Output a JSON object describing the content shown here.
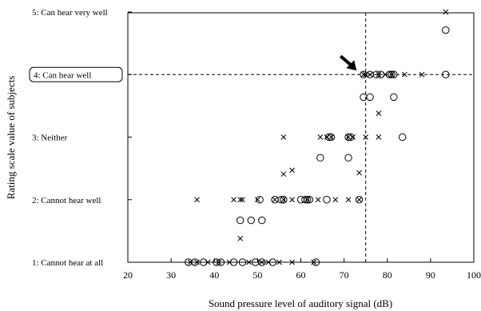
{
  "chart_data": {
    "type": "scatter",
    "title": "",
    "xlabel": "Sound pressure level of auditory signal (dB)",
    "ylabel": "Rating scale value of subjects",
    "xlim": [
      20,
      100
    ],
    "ylim": [
      1,
      5
    ],
    "x_ticks": [
      "20",
      "30",
      "40",
      "50",
      "60",
      "70",
      "80",
      "90",
      "100"
    ],
    "y_ticks": [
      {
        "value": 1,
        "label": "1: Cannot hear at all"
      },
      {
        "value": 2,
        "label": "2: Cannot hear well"
      },
      {
        "value": 3,
        "label": "3: Neither"
      },
      {
        "value": 4,
        "label": "4: Can hear well"
      },
      {
        "value": 5,
        "label": "5: Can hear very well"
      }
    ],
    "highlighted_y_label": "4: Can hear well",
    "reference_lines": {
      "x": 75,
      "y": 4
    },
    "annotation": {
      "type": "arrow",
      "points_to": [
        74,
        4
      ]
    },
    "legend": "none",
    "grid": false,
    "series": [
      {
        "marker": "circle",
        "points": [
          [
            93.5,
            4.71
          ],
          [
            74.5,
            4
          ],
          [
            76,
            4
          ],
          [
            77.5,
            4
          ],
          [
            78.5,
            4
          ],
          [
            80.5,
            4
          ],
          [
            81,
            4
          ],
          [
            81.5,
            4
          ],
          [
            93.5,
            4
          ],
          [
            74.5,
            3.64
          ],
          [
            76,
            3.64
          ],
          [
            81.5,
            3.64
          ],
          [
            66.5,
            3
          ],
          [
            67,
            3
          ],
          [
            71,
            3
          ],
          [
            71.5,
            3
          ],
          [
            83.5,
            3
          ],
          [
            64.5,
            2.67
          ],
          [
            71,
            2.67
          ],
          [
            50.5,
            2
          ],
          [
            54,
            2
          ],
          [
            55.5,
            2
          ],
          [
            56,
            2
          ],
          [
            60,
            2
          ],
          [
            61,
            2
          ],
          [
            61.5,
            2
          ],
          [
            62,
            2
          ],
          [
            66,
            2
          ],
          [
            73.5,
            2
          ],
          [
            46,
            1.67
          ],
          [
            48.5,
            1.67
          ],
          [
            51,
            1.67
          ],
          [
            34,
            1
          ],
          [
            35.5,
            1
          ],
          [
            37.5,
            1
          ],
          [
            40.5,
            1
          ],
          [
            41.5,
            1
          ],
          [
            44.5,
            1
          ],
          [
            46.5,
            1
          ],
          [
            49.5,
            1
          ],
          [
            51,
            1
          ],
          [
            53.5,
            1
          ],
          [
            63.5,
            1
          ]
        ]
      },
      {
        "marker": "x",
        "points": [
          [
            93.5,
            5
          ],
          [
            74.5,
            4
          ],
          [
            75,
            4
          ],
          [
            76,
            4
          ],
          [
            78,
            4
          ],
          [
            79.5,
            4
          ],
          [
            81,
            4
          ],
          [
            84,
            4
          ],
          [
            88,
            4
          ],
          [
            78,
            3.38
          ],
          [
            56,
            3
          ],
          [
            64.5,
            3
          ],
          [
            66,
            3
          ],
          [
            67,
            3
          ],
          [
            71,
            3
          ],
          [
            72,
            3
          ],
          [
            75,
            3
          ],
          [
            78,
            3
          ],
          [
            73.5,
            2.43
          ],
          [
            58,
            2.47
          ],
          [
            56,
            2.41
          ],
          [
            36,
            2
          ],
          [
            44.5,
            2
          ],
          [
            46,
            2
          ],
          [
            46.5,
            2
          ],
          [
            50,
            2
          ],
          [
            54,
            2
          ],
          [
            56,
            2
          ],
          [
            58,
            2
          ],
          [
            61.5,
            2
          ],
          [
            64,
            2
          ],
          [
            68,
            2
          ],
          [
            71,
            2
          ],
          [
            73.5,
            2
          ],
          [
            46,
            1.38
          ],
          [
            34.5,
            1
          ],
          [
            36,
            1
          ],
          [
            38.5,
            1
          ],
          [
            41,
            1
          ],
          [
            43.5,
            1
          ],
          [
            48,
            1
          ],
          [
            51,
            1
          ],
          [
            52.5,
            1
          ],
          [
            55,
            1
          ],
          [
            58,
            1
          ],
          [
            63,
            1
          ]
        ]
      }
    ]
  }
}
